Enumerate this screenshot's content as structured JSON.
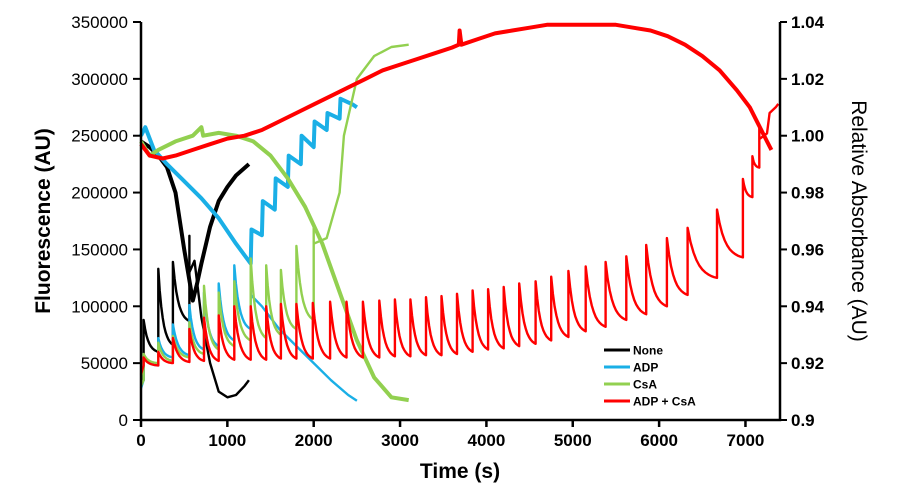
{
  "chart_data": {
    "type": "line",
    "title": "",
    "xlabel": "Time (s)",
    "ylabel": "Fluorescence (AU)",
    "y2label": "Relative Absorbance (AU)",
    "xlim": [
      0,
      7400
    ],
    "ylim": [
      0,
      350000
    ],
    "y2lim": [
      0.9,
      1.04
    ],
    "x_ticks": [
      0,
      1000,
      2000,
      3000,
      4000,
      5000,
      6000,
      7000
    ],
    "x_tick_labels": [
      "0",
      "1000",
      "2000",
      "3000",
      "4000",
      "5000",
      "6000",
      "7000"
    ],
    "y_ticks": [
      0,
      50000,
      100000,
      150000,
      200000,
      250000,
      300000,
      350000
    ],
    "y_tick_labels": [
      "0",
      "50000",
      "100000",
      "150000",
      "200000",
      "250000",
      "300000",
      "350000"
    ],
    "y2_ticks": [
      0.9,
      0.92,
      0.94,
      0.96,
      0.98,
      1.0,
      1.02,
      1.04
    ],
    "y2_tick_labels": [
      "0.9",
      "0.92",
      "0.94",
      "0.96",
      "0.98",
      "1.00",
      "1.02",
      "1.04"
    ],
    "grid": false,
    "legend": {
      "position": "bottom-right",
      "entries": [
        {
          "name": "None",
          "color": "#000000"
        },
        {
          "name": "ADP",
          "color": "#1AAFE6"
        },
        {
          "name": "CsA",
          "color": "#92D050"
        },
        {
          "name": "ADP + CsA",
          "color": "#FF0000"
        }
      ]
    },
    "series": [
      {
        "name": "None",
        "color": "#000000",
        "fluorescence": {
          "baseline": [
            [
              0,
              40000
            ],
            [
              30,
              35000
            ]
          ],
          "pulses": [
            {
              "t": 30,
              "peak": 88000,
              "trough": 60000
            },
            {
              "t": 200,
              "peak": 133000,
              "trough": 66000
            },
            {
              "t": 370,
              "peak": 139000,
              "trough": 87000
            },
            {
              "t": 560,
              "peak": 162000,
              "trough": 130000
            }
          ],
          "tail": [
            [
              560,
              130000
            ],
            [
              620,
              140000
            ],
            [
              700,
              90000
            ],
            [
              800,
              50000
            ],
            [
              900,
              25000
            ],
            [
              1000,
              20000
            ],
            [
              1100,
              22000
            ],
            [
              1200,
              30000
            ],
            [
              1250,
              35000
            ]
          ]
        },
        "absorbance": [
          [
            0,
            0.998
          ],
          [
            100,
            0.996
          ],
          [
            200,
            0.993
          ],
          [
            300,
            0.989
          ],
          [
            400,
            0.98
          ],
          [
            500,
            0.96
          ],
          [
            600,
            0.942
          ],
          [
            650,
            0.948
          ],
          [
            700,
            0.955
          ],
          [
            800,
            0.968
          ],
          [
            900,
            0.977
          ],
          [
            1000,
            0.982
          ],
          [
            1100,
            0.986
          ],
          [
            1250,
            0.99
          ]
        ]
      },
      {
        "name": "ADP",
        "color": "#1AAFE6",
        "fluorescence": {
          "baseline": [
            [
              0,
              28000
            ],
            [
              30,
              35000
            ]
          ],
          "pulses": [
            {
              "t": 30,
              "peak": 56000,
              "trough": 48000
            },
            {
              "t": 200,
              "peak": 72000,
              "trough": 55000
            },
            {
              "t": 370,
              "peak": 84000,
              "trough": 57000
            },
            {
              "t": 560,
              "peak": 101000,
              "trough": 62000
            },
            {
              "t": 730,
              "peak": 112000,
              "trough": 65000
            },
            {
              "t": 900,
              "peak": 120000,
              "trough": 70000
            },
            {
              "t": 1080,
              "peak": 136000,
              "trough": 80000
            },
            {
              "t": 1270,
              "peak": 151000,
              "trough": 110000
            }
          ],
          "tail": [
            [
              1270,
              110000
            ],
            [
              1400,
              100000
            ],
            [
              1600,
              80000
            ],
            [
              1800,
              65000
            ],
            [
              2000,
              50000
            ],
            [
              2200,
              35000
            ],
            [
              2400,
              22000
            ],
            [
              2500,
              17000
            ]
          ]
        },
        "absorbance": [
          [
            0,
            1.0
          ],
          [
            50,
            1.003
          ],
          [
            150,
            0.995
          ],
          [
            300,
            0.99
          ],
          [
            500,
            0.984
          ],
          [
            700,
            0.978
          ],
          [
            900,
            0.971
          ],
          [
            1100,
            0.962
          ],
          [
            1270,
            0.955
          ],
          [
            1280,
            0.967
          ],
          [
            1400,
            0.965
          ],
          [
            1410,
            0.977
          ],
          [
            1550,
            0.974
          ],
          [
            1560,
            0.985
          ],
          [
            1700,
            0.982
          ],
          [
            1710,
            0.993
          ],
          [
            1850,
            0.99
          ],
          [
            1860,
            1.0
          ],
          [
            2000,
            0.996
          ],
          [
            2010,
            1.005
          ],
          [
            2150,
            1.002
          ],
          [
            2160,
            1.008
          ],
          [
            2300,
            1.006
          ],
          [
            2310,
            1.013
          ],
          [
            2450,
            1.011
          ],
          [
            2500,
            1.01
          ]
        ]
      },
      {
        "name": "CsA",
        "color": "#92D050",
        "fluorescence": {
          "baseline": [
            [
              0,
              30000
            ],
            [
              30,
              35000
            ]
          ],
          "pulses": [
            {
              "t": 30,
              "peak": 58000,
              "trough": 50000
            },
            {
              "t": 200,
              "peak": 68000,
              "trough": 52000
            },
            {
              "t": 370,
              "peak": 74000,
              "trough": 55000
            },
            {
              "t": 560,
              "peak": 86000,
              "trough": 58000
            },
            {
              "t": 730,
              "peak": 118000,
              "trough": 62000
            },
            {
              "t": 900,
              "peak": 112000,
              "trough": 65000
            },
            {
              "t": 1080,
              "peak": 122000,
              "trough": 70000
            },
            {
              "t": 1270,
              "peak": 142000,
              "trough": 72000
            },
            {
              "t": 1450,
              "peak": 136000,
              "trough": 75000
            },
            {
              "t": 1620,
              "peak": 132000,
              "trough": 80000
            },
            {
              "t": 1800,
              "peak": 153000,
              "trough": 88000
            },
            {
              "t": 2000,
              "peak": 172000,
              "trough": 155000
            }
          ],
          "tail": [
            [
              2000,
              155000
            ],
            [
              2150,
              160000
            ],
            [
              2300,
              200000
            ],
            [
              2350,
              250000
            ],
            [
              2500,
              300000
            ],
            [
              2700,
              320000
            ],
            [
              2900,
              328000
            ],
            [
              3100,
              330000
            ]
          ]
        },
        "absorbance": [
          [
            0,
            0.998
          ],
          [
            100,
            0.993
          ],
          [
            200,
            0.995
          ],
          [
            400,
            0.998
          ],
          [
            600,
            1.0
          ],
          [
            700,
            1.003
          ],
          [
            720,
            1.0
          ],
          [
            900,
            1.001
          ],
          [
            1100,
            1.0
          ],
          [
            1300,
            0.998
          ],
          [
            1500,
            0.993
          ],
          [
            1700,
            0.985
          ],
          [
            1900,
            0.975
          ],
          [
            2100,
            0.962
          ],
          [
            2300,
            0.945
          ],
          [
            2500,
            0.928
          ],
          [
            2700,
            0.915
          ],
          [
            2900,
            0.908
          ],
          [
            3100,
            0.907
          ]
        ]
      },
      {
        "name": "ADP + CsA",
        "color": "#FF0000",
        "fluorescence": {
          "baseline": [
            [
              0,
              40000
            ],
            [
              30,
              48000
            ]
          ],
          "pulses": [
            {
              "t": 30,
              "peak": 55000,
              "trough": 48000
            },
            {
              "t": 200,
              "peak": 60000,
              "trough": 50000
            },
            {
              "t": 370,
              "peak": 72000,
              "trough": 51000
            },
            {
              "t": 560,
              "peak": 80000,
              "trough": 52000
            },
            {
              "t": 730,
              "peak": 90000,
              "trough": 52000
            },
            {
              "t": 900,
              "peak": 92000,
              "trough": 53000
            },
            {
              "t": 1080,
              "peak": 100000,
              "trough": 53000
            },
            {
              "t": 1270,
              "peak": 100000,
              "trough": 53000
            },
            {
              "t": 1450,
              "peak": 100000,
              "trough": 54000
            },
            {
              "t": 1620,
              "peak": 102000,
              "trough": 54000
            },
            {
              "t": 1800,
              "peak": 102000,
              "trough": 54000
            },
            {
              "t": 1990,
              "peak": 103000,
              "trough": 54000
            },
            {
              "t": 2190,
              "peak": 104000,
              "trough": 55000
            },
            {
              "t": 2380,
              "peak": 104000,
              "trough": 55000
            },
            {
              "t": 2570,
              "peak": 104000,
              "trough": 55000
            },
            {
              "t": 2760,
              "peak": 105000,
              "trough": 56000
            },
            {
              "t": 2940,
              "peak": 106000,
              "trough": 56000
            },
            {
              "t": 3120,
              "peak": 106000,
              "trough": 57000
            },
            {
              "t": 3300,
              "peak": 108000,
              "trough": 57000
            },
            {
              "t": 3480,
              "peak": 109000,
              "trough": 58000
            },
            {
              "t": 3660,
              "peak": 111000,
              "trough": 60000
            },
            {
              "t": 3840,
              "peak": 114000,
              "trough": 62000
            },
            {
              "t": 4020,
              "peak": 115000,
              "trough": 63000
            },
            {
              "t": 4200,
              "peak": 117000,
              "trough": 65000
            },
            {
              "t": 4380,
              "peak": 120000,
              "trough": 67000
            },
            {
              "t": 4570,
              "peak": 122000,
              "trough": 70000
            },
            {
              "t": 4750,
              "peak": 126000,
              "trough": 73000
            },
            {
              "t": 4950,
              "peak": 131000,
              "trough": 78000
            },
            {
              "t": 5150,
              "peak": 135000,
              "trough": 82000
            },
            {
              "t": 5380,
              "peak": 139000,
              "trough": 88000
            },
            {
              "t": 5620,
              "peak": 144000,
              "trough": 93000
            },
            {
              "t": 5850,
              "peak": 154000,
              "trough": 100000
            },
            {
              "t": 6090,
              "peak": 160000,
              "trough": 110000
            },
            {
              "t": 6330,
              "peak": 169000,
              "trough": 125000
            },
            {
              "t": 6670,
              "peak": 185000,
              "trough": 143000
            },
            {
              "t": 6970,
              "peak": 212000,
              "trough": 196000
            },
            {
              "t": 7080,
              "peak": 232000,
              "trough": 222000
            },
            {
              "t": 7160,
              "peak": 258000,
              "trough": 247000
            }
          ],
          "tail": [
            [
              7160,
              247000
            ],
            [
              7250,
              252000
            ],
            [
              7280,
              270000
            ],
            [
              7350,
              275000
            ],
            [
              7380,
              278000
            ]
          ]
        },
        "absorbance": [
          [
            0,
            0.997
          ],
          [
            100,
            0.993
          ],
          [
            250,
            0.992
          ],
          [
            400,
            0.993
          ],
          [
            600,
            0.995
          ],
          [
            800,
            0.997
          ],
          [
            1000,
            0.999
          ],
          [
            1200,
            1.0
          ],
          [
            1400,
            1.002
          ],
          [
            1600,
            1.005
          ],
          [
            1800,
            1.008
          ],
          [
            2000,
            1.011
          ],
          [
            2200,
            1.014
          ],
          [
            2400,
            1.017
          ],
          [
            2600,
            1.02
          ],
          [
            2800,
            1.023
          ],
          [
            3000,
            1.025
          ],
          [
            3200,
            1.027
          ],
          [
            3400,
            1.029
          ],
          [
            3600,
            1.031
          ],
          [
            3680,
            1.032
          ],
          [
            3690,
            1.037
          ],
          [
            3710,
            1.032
          ],
          [
            3900,
            1.034
          ],
          [
            4100,
            1.036
          ],
          [
            4300,
            1.037
          ],
          [
            4500,
            1.038
          ],
          [
            4700,
            1.039
          ],
          [
            5000,
            1.039
          ],
          [
            5300,
            1.039
          ],
          [
            5500,
            1.039
          ],
          [
            5700,
            1.038
          ],
          [
            5900,
            1.037
          ],
          [
            6100,
            1.035
          ],
          [
            6300,
            1.032
          ],
          [
            6500,
            1.028
          ],
          [
            6700,
            1.023
          ],
          [
            6900,
            1.016
          ],
          [
            7050,
            1.01
          ],
          [
            7150,
            1.004
          ],
          [
            7250,
            0.998
          ],
          [
            7300,
            0.995
          ]
        ]
      }
    ]
  }
}
